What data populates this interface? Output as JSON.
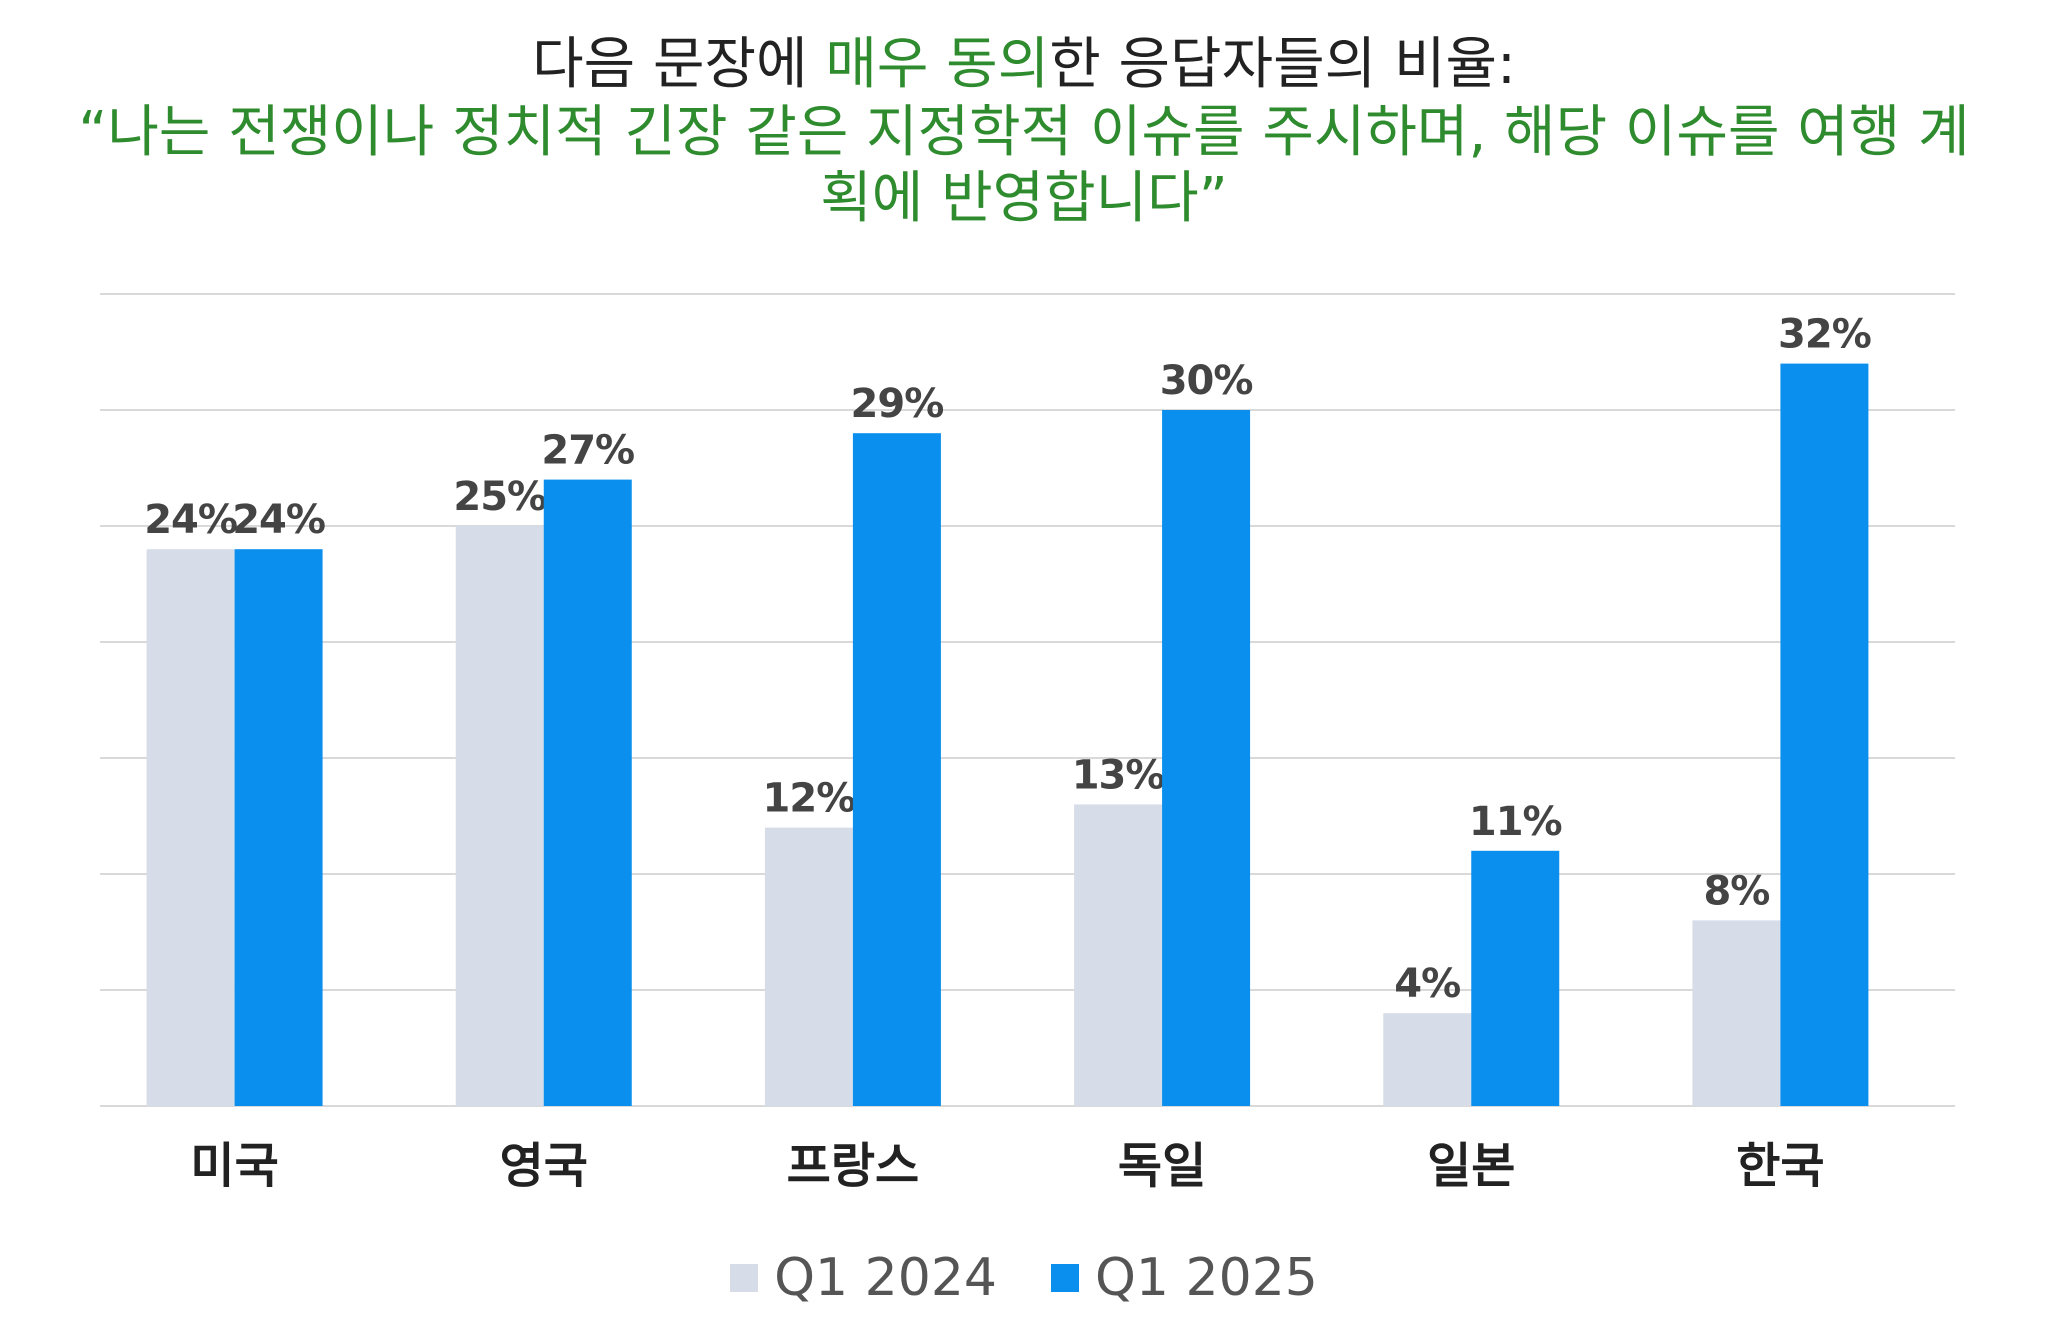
{
  "title": {
    "line1_pre": "다음 문장에 ",
    "line1_highlight": "매우 동의",
    "line1_post": "한 응답자들의 비율:",
    "quote": "“나는 전쟁이나 정치적 긴장 같은 지정학적 이슈를 주시하며, 해당 이슈를 여행 계획에 반영합니다”"
  },
  "colors": {
    "q1_2024": "#d6dde8",
    "q1_2025": "#0a8fee",
    "title_highlight": "#2e8b2e",
    "gridline": "#d9d9d9",
    "axis_label": "#222222",
    "data_label": "#444444"
  },
  "chart_data": {
    "type": "bar",
    "categories": [
      "미국",
      "영국",
      "프랑스",
      "독일",
      "일본",
      "한국"
    ],
    "series": [
      {
        "name": "Q1 2024",
        "values": [
          24,
          25,
          12,
          13,
          4,
          8
        ],
        "labels": [
          "24%",
          "25%",
          "12%",
          "13%",
          "4%",
          "8%"
        ]
      },
      {
        "name": "Q1 2025",
        "values": [
          24,
          27,
          29,
          30,
          11,
          32
        ],
        "labels": [
          "24%",
          "27%",
          "29%",
          "30%",
          "11%",
          "32%"
        ]
      }
    ],
    "ylim": [
      0,
      35
    ],
    "grid": true,
    "legend": "bottom"
  }
}
